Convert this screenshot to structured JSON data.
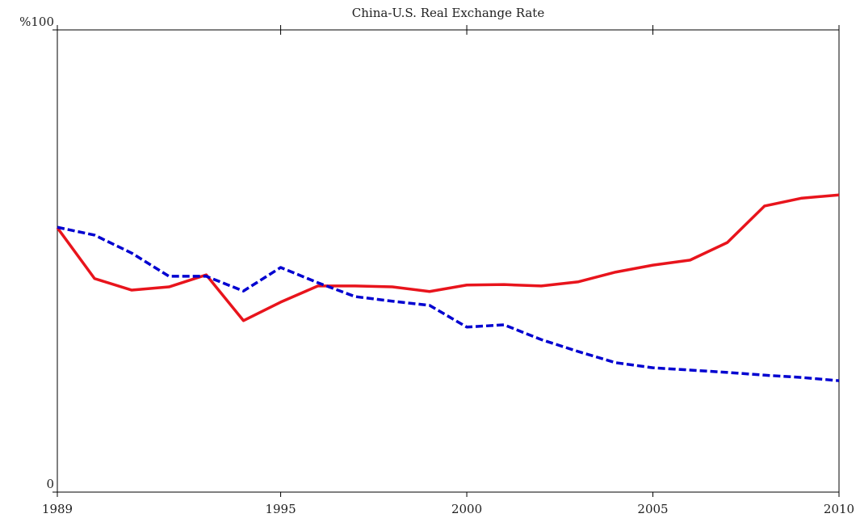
{
  "chart_data": {
    "type": "line",
    "title": "China-U.S. Real Exchange Rate",
    "x": [
      1989,
      1990,
      1991,
      1992,
      1993,
      1994,
      1995,
      1996,
      1997,
      1998,
      1999,
      2000,
      2001,
      2002,
      2003,
      2004,
      2005,
      2006,
      2007,
      2008,
      2009,
      2010
    ],
    "series": [
      {
        "color": "#e8141c",
        "dash": "solid",
        "values": [
          57.2,
          46.2,
          43.7,
          44.4,
          47.0,
          37.1,
          41.1,
          44.6,
          44.6,
          44.4,
          43.4,
          44.8,
          44.9,
          44.6,
          45.5,
          47.6,
          49.1,
          50.2,
          54.0,
          61.9,
          63.6,
          64.3
        ]
      },
      {
        "color": "#0000d0",
        "dash": "dashed",
        "values": [
          57.3,
          55.6,
          51.7,
          46.7,
          46.7,
          43.5,
          48.6,
          45.3,
          42.3,
          41.3,
          40.4,
          35.7,
          36.2,
          33.0,
          30.4,
          28.0,
          26.9,
          26.4,
          25.9,
          25.3,
          24.8,
          24.1
        ]
      }
    ],
    "xlim": [
      1989,
      2010
    ],
    "xticks": [
      1989,
      1995,
      2000,
      2005,
      2010
    ],
    "ylim": [
      0,
      100
    ],
    "yticks": [
      0,
      {
        "value": 100,
        "label": "%100"
      }
    ]
  }
}
